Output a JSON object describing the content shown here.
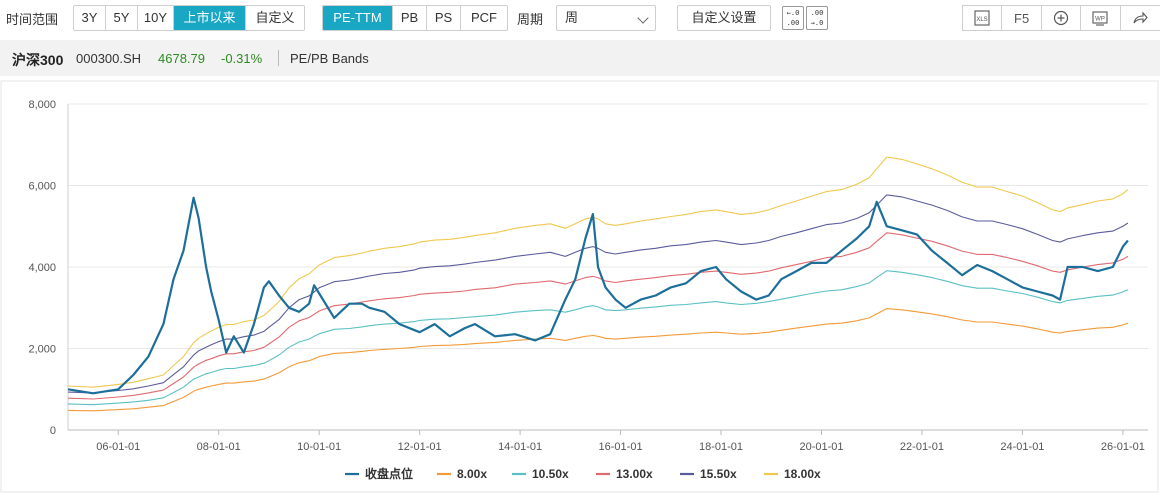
{
  "toolbar": {
    "range_label": "时间范围",
    "range_options": [
      "3Y",
      "5Y",
      "10Y",
      "上市以来",
      "自定义"
    ],
    "range_active": "上市以来",
    "metric_options": [
      "PE-TTM",
      "PB",
      "PS",
      "PCF"
    ],
    "metric_active": "PE-TTM",
    "period_label": "周期",
    "period_value": "周",
    "custom_settings_label": "自定义设置",
    "decimal_increase_label": "+.0 .00",
    "decimal_decrease_label": "-.00 .0",
    "export_excel_icon": "xls-icon",
    "f5_label": "F5",
    "zoom_icon": "plus-circle-icon",
    "word_icon": "wp-icon",
    "share_icon": "share-icon"
  },
  "header": {
    "name": "沪深300",
    "code": "000300.SH",
    "price": "4678.79",
    "change": "-0.31%",
    "title": "PE/PB Bands",
    "change_color": "#2e8b22"
  },
  "chart_data": {
    "type": "line",
    "title": "PE/PB Bands",
    "xlabel": "",
    "ylabel": "",
    "ylim": [
      0,
      8000
    ],
    "yticks": [
      0,
      2000,
      4000,
      6000,
      8000
    ],
    "ytick_labels": [
      "0",
      "2,000",
      "4,000",
      "6,000",
      "8,000"
    ],
    "xlim": [
      2005.0,
      2026.5
    ],
    "xticks": [
      2006,
      2008,
      2010,
      2012,
      2014,
      2016,
      2018,
      2020,
      2022,
      2024,
      2026
    ],
    "xtick_labels": [
      "06-01-01",
      "08-01-01",
      "10-01-01",
      "12-01-01",
      "14-01-01",
      "16-01-01",
      "18-01-01",
      "20-01-01",
      "22-01-01",
      "24-01-01",
      "26-01-01"
    ],
    "grid": "horizontal",
    "legend_position": "bottom",
    "x": [
      2005.0,
      2005.5,
      2006.0,
      2006.3,
      2006.6,
      2006.9,
      2007.1,
      2007.3,
      2007.5,
      2007.6,
      2007.75,
      2007.85,
      2008.0,
      2008.15,
      2008.3,
      2008.5,
      2008.7,
      2008.9,
      2009.0,
      2009.2,
      2009.4,
      2009.6,
      2009.8,
      2009.9,
      2010.0,
      2010.3,
      2010.6,
      2010.85,
      2011.0,
      2011.3,
      2011.6,
      2011.9,
      2012.0,
      2012.3,
      2012.6,
      2012.9,
      2013.1,
      2013.5,
      2013.9,
      2014.3,
      2014.6,
      2014.9,
      2015.1,
      2015.3,
      2015.45,
      2015.55,
      2015.7,
      2015.9,
      2016.1,
      2016.4,
      2016.7,
      2017.0,
      2017.3,
      2017.6,
      2017.9,
      2018.1,
      2018.4,
      2018.7,
      2018.95,
      2019.2,
      2019.5,
      2019.8,
      2020.1,
      2020.4,
      2020.7,
      2020.95,
      2021.1,
      2021.3,
      2021.6,
      2021.9,
      2022.2,
      2022.5,
      2022.8,
      2023.1,
      2023.4,
      2023.7,
      2024.0,
      2024.3,
      2024.6,
      2024.75,
      2024.9,
      2025.2,
      2025.5,
      2025.8,
      2026.0,
      2026.1
    ],
    "series": [
      {
        "name": "收盘点位",
        "color": "#1c6f9a",
        "width": 2.2,
        "values": [
          1000,
          900,
          1000,
          1350,
          1800,
          2600,
          3700,
          4400,
          5700,
          5200,
          4000,
          3400,
          2700,
          1900,
          2300,
          1900,
          2600,
          3500,
          3650,
          3300,
          3000,
          2900,
          3100,
          3550,
          3350,
          2750,
          3100,
          3100,
          3000,
          2900,
          2600,
          2450,
          2400,
          2600,
          2300,
          2500,
          2600,
          2300,
          2350,
          2200,
          2350,
          3200,
          3700,
          4700,
          5300,
          4000,
          3500,
          3200,
          3000,
          3200,
          3300,
          3500,
          3600,
          3900,
          4000,
          3700,
          3400,
          3200,
          3300,
          3700,
          3900,
          4100,
          4100,
          4400,
          4700,
          5000,
          5600,
          5000,
          4900,
          4800,
          4400,
          4100,
          3800,
          4050,
          3900,
          3700,
          3500,
          3400,
          3300,
          3200,
          4000,
          4000,
          3900,
          4000,
          4500,
          4650
        ]
      },
      {
        "name": "8.00x",
        "color": "#f39a3a",
        "width": 1.1,
        "values": [
          480,
          470,
          500,
          520,
          560,
          600,
          700,
          800,
          950,
          1000,
          1050,
          1080,
          1120,
          1150,
          1150,
          1180,
          1200,
          1250,
          1300,
          1400,
          1550,
          1650,
          1700,
          1750,
          1800,
          1880,
          1900,
          1930,
          1950,
          1980,
          2000,
          2030,
          2050,
          2070,
          2080,
          2100,
          2120,
          2150,
          2200,
          2230,
          2250,
          2200,
          2250,
          2300,
          2320,
          2300,
          2250,
          2230,
          2250,
          2280,
          2300,
          2330,
          2350,
          2380,
          2400,
          2380,
          2350,
          2370,
          2400,
          2450,
          2500,
          2550,
          2600,
          2620,
          2680,
          2750,
          2850,
          2980,
          2950,
          2900,
          2850,
          2780,
          2700,
          2650,
          2650,
          2600,
          2550,
          2480,
          2400,
          2380,
          2420,
          2460,
          2500,
          2520,
          2580,
          2620
        ]
      },
      {
        "name": "10.50x",
        "color": "#5bc0c4",
        "width": 1.1,
        "values": [
          640,
          620,
          660,
          690,
          730,
          790,
          920,
          1050,
          1250,
          1300,
          1380,
          1410,
          1470,
          1510,
          1510,
          1550,
          1580,
          1640,
          1700,
          1840,
          2030,
          2160,
          2230,
          2300,
          2360,
          2470,
          2490,
          2530,
          2560,
          2600,
          2620,
          2660,
          2690,
          2720,
          2730,
          2760,
          2780,
          2820,
          2890,
          2930,
          2950,
          2890,
          2950,
          3020,
          3050,
          3020,
          2950,
          2930,
          2950,
          2990,
          3020,
          3060,
          3080,
          3120,
          3150,
          3120,
          3080,
          3110,
          3150,
          3210,
          3280,
          3350,
          3410,
          3440,
          3520,
          3610,
          3740,
          3910,
          3870,
          3810,
          3740,
          3650,
          3540,
          3480,
          3480,
          3410,
          3350,
          3260,
          3150,
          3120,
          3180,
          3230,
          3280,
          3310,
          3390,
          3440
        ]
      },
      {
        "name": "13.00x",
        "color": "#e06a70",
        "width": 1.1,
        "values": [
          780,
          760,
          810,
          850,
          910,
          980,
          1140,
          1300,
          1540,
          1620,
          1710,
          1750,
          1820,
          1870,
          1870,
          1920,
          1950,
          2030,
          2110,
          2280,
          2520,
          2680,
          2760,
          2840,
          2920,
          3050,
          3090,
          3140,
          3170,
          3220,
          3250,
          3300,
          3330,
          3360,
          3380,
          3410,
          3450,
          3490,
          3580,
          3620,
          3660,
          3580,
          3660,
          3740,
          3770,
          3740,
          3660,
          3620,
          3660,
          3700,
          3740,
          3790,
          3820,
          3870,
          3900,
          3870,
          3820,
          3850,
          3900,
          3980,
          4060,
          4140,
          4230,
          4260,
          4360,
          4470,
          4630,
          4840,
          4790,
          4710,
          4630,
          4520,
          4390,
          4310,
          4310,
          4230,
          4140,
          4030,
          3900,
          3870,
          3930,
          4000,
          4060,
          4100,
          4190,
          4260
        ]
      },
      {
        "name": "15.50x",
        "color": "#5a5c9c",
        "width": 1.1,
        "values": [
          930,
          910,
          970,
          1010,
          1080,
          1160,
          1360,
          1550,
          1840,
          1940,
          2030,
          2090,
          2170,
          2230,
          2230,
          2290,
          2330,
          2420,
          2520,
          2710,
          3000,
          3200,
          3290,
          3390,
          3490,
          3640,
          3680,
          3740,
          3780,
          3840,
          3870,
          3930,
          3970,
          4010,
          4030,
          4070,
          4110,
          4170,
          4260,
          4320,
          4360,
          4260,
          4360,
          4460,
          4500,
          4460,
          4360,
          4320,
          4360,
          4420,
          4460,
          4520,
          4550,
          4610,
          4650,
          4610,
          4550,
          4590,
          4650,
          4750,
          4840,
          4940,
          5040,
          5080,
          5190,
          5330,
          5520,
          5770,
          5720,
          5620,
          5520,
          5390,
          5230,
          5130,
          5130,
          5040,
          4940,
          4800,
          4650,
          4610,
          4690,
          4770,
          4840,
          4880,
          5000,
          5080
        ]
      },
      {
        "name": "18.00x",
        "color": "#f0c850",
        "width": 1.1,
        "values": [
          1080,
          1050,
          1120,
          1170,
          1260,
          1350,
          1580,
          1800,
          2140,
          2250,
          2360,
          2430,
          2520,
          2590,
          2590,
          2660,
          2700,
          2810,
          2920,
          3150,
          3490,
          3710,
          3830,
          3940,
          4050,
          4230,
          4280,
          4340,
          4390,
          4460,
          4500,
          4570,
          4610,
          4660,
          4680,
          4730,
          4770,
          4840,
          4950,
          5020,
          5060,
          4950,
          5060,
          5180,
          5220,
          5180,
          5060,
          5020,
          5060,
          5130,
          5180,
          5240,
          5290,
          5360,
          5400,
          5360,
          5290,
          5330,
          5400,
          5510,
          5620,
          5740,
          5850,
          5900,
          6030,
          6190,
          6410,
          6700,
          6640,
          6530,
          6410,
          6260,
          6080,
          5960,
          5960,
          5850,
          5740,
          5580,
          5400,
          5360,
          5450,
          5530,
          5620,
          5670,
          5800,
          5900
        ]
      }
    ]
  }
}
